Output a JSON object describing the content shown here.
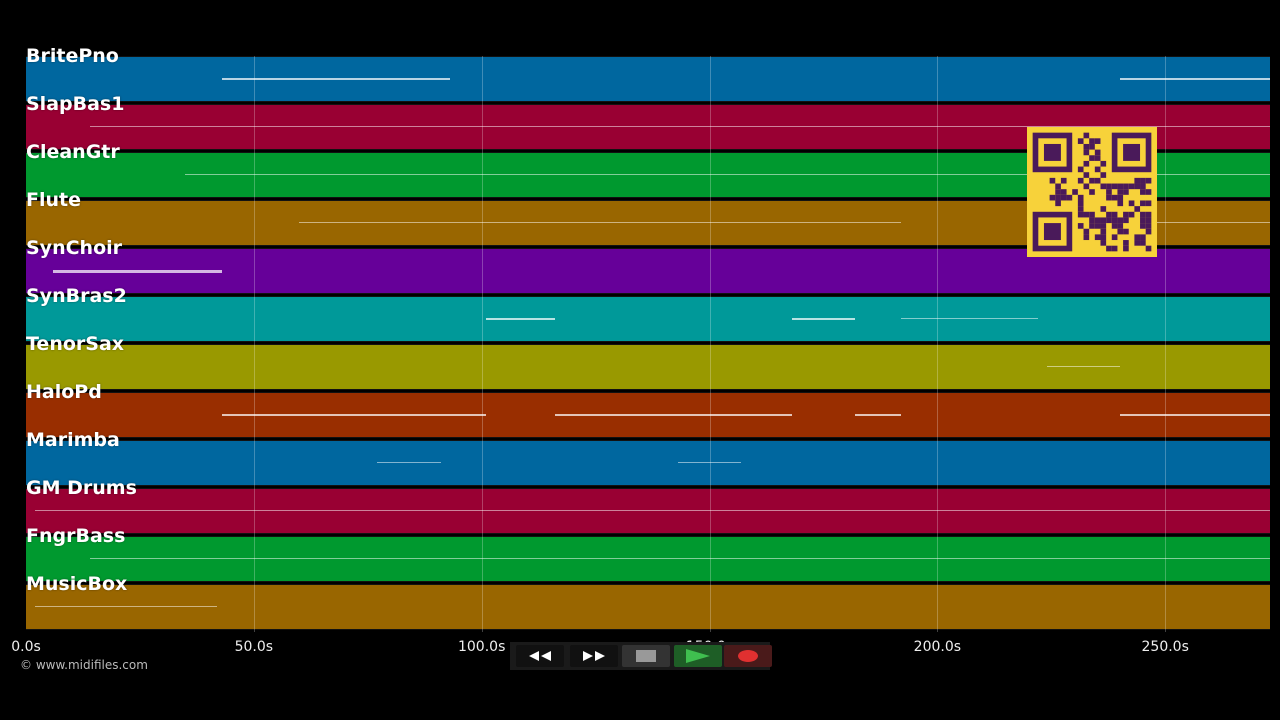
{
  "tracks": [
    {
      "name": "BritePno",
      "color": "#00679f"
    },
    {
      "name": "SlapBas1",
      "color": "#990033"
    },
    {
      "name": "CleanGtr",
      "color": "#00992f"
    },
    {
      "name": "Flute",
      "color": "#996600"
    },
    {
      "name": "SynChoir",
      "color": "#660099"
    },
    {
      "name": "SynBras2",
      "color": "#009999"
    },
    {
      "name": "TenorSax",
      "color": "#999900"
    },
    {
      "name": "HaloPd",
      "color": "#992e00"
    },
    {
      "name": "Marimba",
      "color": "#00679f"
    },
    {
      "name": "GM Drums",
      "color": "#990033"
    },
    {
      "name": "FngrBass",
      "color": "#00992f"
    },
    {
      "name": "MusicBox",
      "color": "#996600"
    }
  ],
  "timeline": {
    "ticks": [
      "0.0s",
      "50.0s",
      "100.0s",
      "150.0s",
      "200.0s",
      "250.0s"
    ],
    "tick_seconds": [
      0,
      50,
      100,
      150,
      200,
      250
    ],
    "duration_seconds": 273
  },
  "copyright": "© www.midifiles.com",
  "transport": {
    "rewind_icon": "rewind-icon",
    "forward_icon": "fast-forward-icon",
    "stop_icon": "stop-icon",
    "play_icon": "play-icon",
    "record_icon": "record-icon",
    "play_color": "#1e8f2e",
    "record_color": "#e03030"
  },
  "qr_icon": "qr-code",
  "qr_colors": {
    "background": "#f7d23a",
    "foreground": "#4a1a5a"
  }
}
